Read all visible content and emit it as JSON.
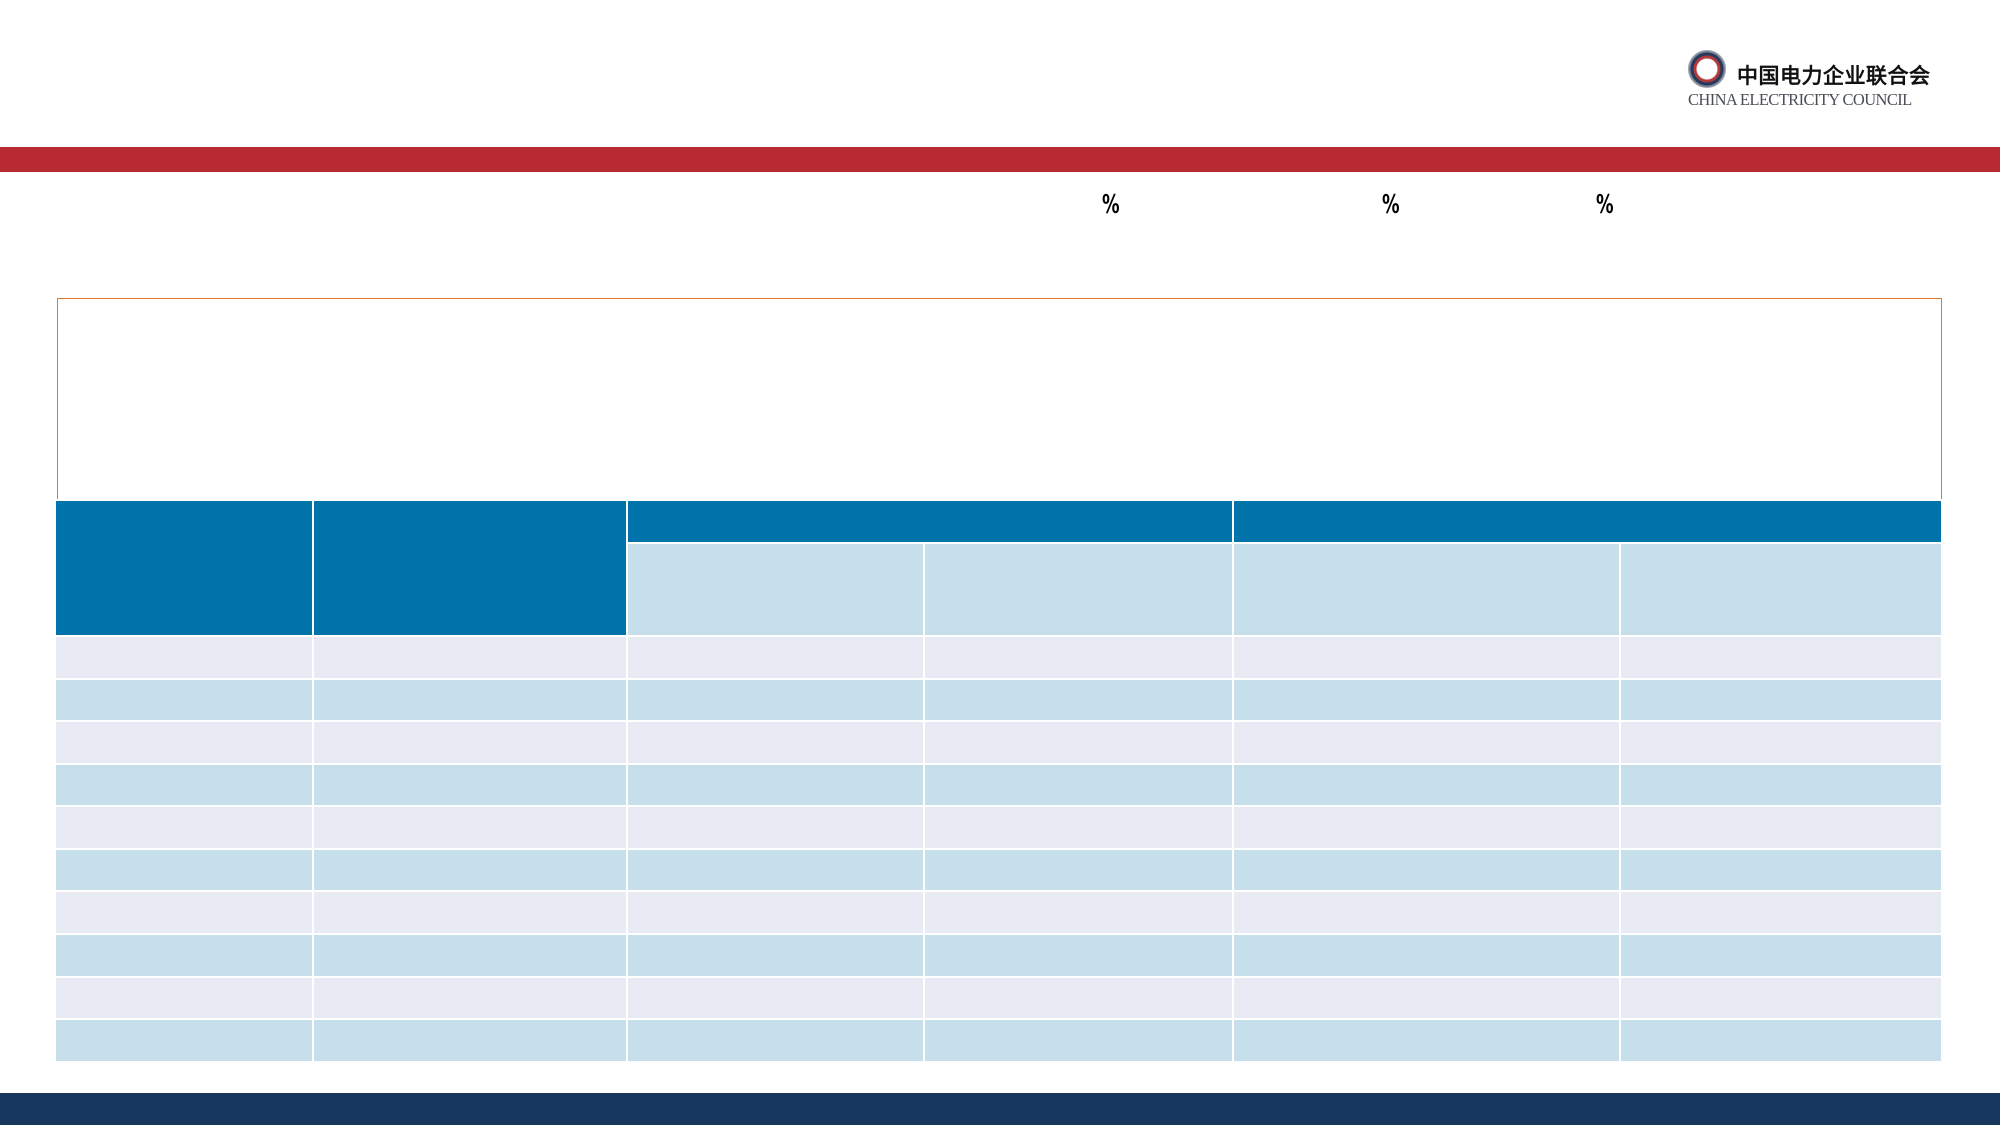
{
  "logo": {
    "emblem_icon": "china-electricity-council-emblem-icon",
    "name_cn": "中国电力企业联合会",
    "name_en": "CHINA ELECTRICITY COUNCIL"
  },
  "percent_markers": [
    "%",
    "%",
    "%"
  ],
  "colors": {
    "top_bar": "#b72a31",
    "bottom_bar": "#17375e",
    "table_header": "#0073ab",
    "table_light_blue": "#c7dfea",
    "table_lavender": "#e8ebf4",
    "box_border": "#e07a2a"
  },
  "table": {
    "rows": 10,
    "columns": 6
  }
}
